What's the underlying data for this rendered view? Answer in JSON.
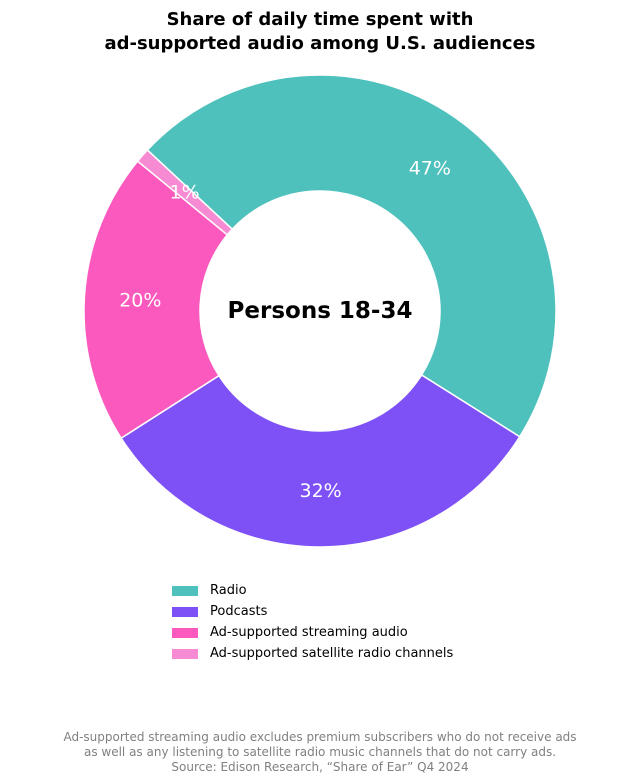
{
  "title_lines": [
    "Share of daily time spent with",
    "ad-supported audio among U.S. audiences"
  ],
  "center_label": "Persons 18-34",
  "footnote_lines": [
    "Ad-supported streaming audio excludes premium subscribers who do not receive ads",
    "as well as any listening to satellite radio music channels that do not carry ads.",
    "Source: Edison Research, “Share of Ear” Q4 2024"
  ],
  "chart_data": {
    "type": "pie",
    "variant": "donut",
    "start_angle_deg_from_top": -47,
    "direction": "clockwise",
    "slices": [
      {
        "label": "Radio",
        "value": 47,
        "display": "47%",
        "color": "#4fc1bd"
      },
      {
        "label": "Podcasts",
        "value": 32,
        "display": "32%",
        "color": "#7e51f6"
      },
      {
        "label": "Ad-supported streaming audio",
        "value": 20,
        "display": "20%",
        "color": "#fb59be"
      },
      {
        "label": "Ad-supported satellite radio channels",
        "value": 1,
        "display": "1%",
        "color": "#f68ad3"
      }
    ],
    "legend_position": "bottom"
  }
}
